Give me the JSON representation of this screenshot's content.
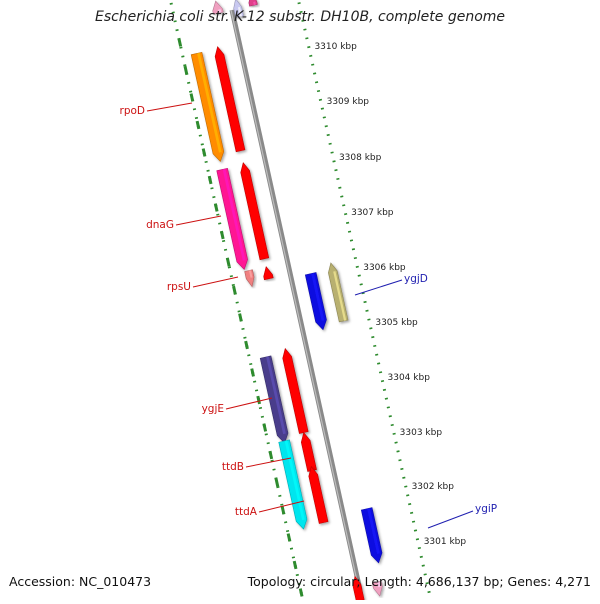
{
  "title": "Escherichia coli str. K-12 substr. DH10B, complete genome",
  "footer": {
    "accession": "Accession: NC_010473",
    "summary": "Topology: circular; Length: 4,686,137 bp; Genes: 4,271"
  },
  "colors": {
    "backbone": "#8a8a8a",
    "ruler_dots": "#2e8b2e",
    "forward_label": "#cc1111",
    "reverse_label": "#1f1fb0",
    "ruler_text": "#222222"
  },
  "ruler_ticks": [
    {
      "label": "3310 kbp"
    },
    {
      "label": "3309 kbp"
    },
    {
      "label": "3308 kbp"
    },
    {
      "label": "3307 kbp"
    },
    {
      "label": "3306 kbp"
    },
    {
      "label": "3305 kbp"
    },
    {
      "label": "3304 kbp"
    },
    {
      "label": "3303 kbp"
    },
    {
      "label": "3302 kbp"
    },
    {
      "label": "3301 kbp"
    }
  ],
  "gene_labels": [
    {
      "name": "rpoD",
      "strand": "forward"
    },
    {
      "name": "dnaG",
      "strand": "forward"
    },
    {
      "name": "rpsU",
      "strand": "forward"
    },
    {
      "name": "ygjD",
      "strand": "reverse"
    },
    {
      "name": "ygjE",
      "strand": "forward"
    },
    {
      "name": "ttdB",
      "strand": "forward"
    },
    {
      "name": "ttdA",
      "strand": "forward"
    },
    {
      "name": "ygiP",
      "strand": "reverse"
    }
  ],
  "features": [
    {
      "id": "top-pink",
      "color": "#f0a0c0"
    },
    {
      "id": "top-lavender",
      "color": "#c8c8f0"
    },
    {
      "id": "top-magenta",
      "color": "#e0408a"
    },
    {
      "id": "rpoD",
      "color": "#ff8c00"
    },
    {
      "id": "rpoD-cds",
      "color": "#ff0000"
    },
    {
      "id": "dnaG",
      "color": "#ff1493"
    },
    {
      "id": "dnaG-cds",
      "color": "#ff0000"
    },
    {
      "id": "rpsU",
      "color": "#f08080"
    },
    {
      "id": "rpsU-cds",
      "color": "#ff0000"
    },
    {
      "id": "ygjD",
      "color": "#1010e0"
    },
    {
      "id": "ygjD-other",
      "color": "#b8b070"
    },
    {
      "id": "ygjE",
      "color": "#483d8b"
    },
    {
      "id": "ygjE-cds",
      "color": "#ff0000"
    },
    {
      "id": "ttdB",
      "color": "#00e5ee"
    },
    {
      "id": "ttdB-cds",
      "color": "#ff0000"
    },
    {
      "id": "ttdA-cds",
      "color": "#ff0000"
    },
    {
      "id": "ygiP",
      "color": "#1010e0"
    },
    {
      "id": "bottom-red",
      "color": "#ff0000"
    },
    {
      "id": "bottom-pink",
      "color": "#f0a0c0"
    }
  ]
}
